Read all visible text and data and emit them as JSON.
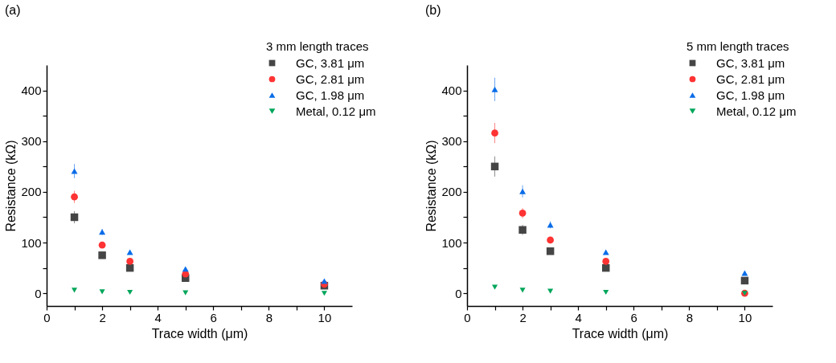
{
  "chart_data": [
    {
      "type": "scatter",
      "title": "(a)",
      "xlabel": "Trace width (μm)",
      "ylabel": "Resistance (kΩ)",
      "legend_title": "3 mm length traces",
      "legend": "top right",
      "grid": false,
      "x": [
        1,
        2,
        3,
        5,
        10
      ],
      "xlim": [
        0,
        11
      ],
      "ylim": [
        -25,
        450
      ],
      "xticks": [
        0,
        {
          "value": 1,
          "label": null
        },
        2,
        {
          "value": 3,
          "label": null
        },
        4,
        {
          "value": 5,
          "label": null
        },
        6,
        {
          "value": 7,
          "label": null
        },
        8,
        {
          "value": 9,
          "label": null
        },
        10
      ],
      "yticks": [
        0,
        {
          "value": 50,
          "label": null
        },
        100,
        {
          "value": 150,
          "label": null
        },
        200,
        {
          "value": 250,
          "label": null
        },
        300,
        {
          "value": 350,
          "label": null
        },
        400
      ],
      "series": [
        {
          "name": "GC, 3.81 μm",
          "color": "#454545",
          "marker": "square",
          "values": [
            150,
            75,
            50,
            30,
            15
          ],
          "errors": [
            12,
            null,
            null,
            null,
            null
          ]
        },
        {
          "name": "GC, 2.81 μm",
          "color": "#ff3333",
          "marker": "circle",
          "values": [
            190,
            95,
            63,
            38,
            18
          ],
          "errors": [
            12,
            null,
            null,
            null,
            null
          ]
        },
        {
          "name": "GC, 1.98 μm",
          "color": "#0a6de8",
          "marker": "triangle",
          "values": [
            241,
            121,
            81,
            48,
            24
          ],
          "errors": [
            14,
            6,
            null,
            null,
            null
          ]
        },
        {
          "name": "Metal, 0.12 μm",
          "color": "#00a65a",
          "marker": "triangle-down",
          "values": [
            6,
            3,
            2,
            1,
            0
          ],
          "errors": [
            null,
            null,
            null,
            null,
            null
          ]
        }
      ]
    },
    {
      "type": "scatter",
      "title": "(b)",
      "xlabel": "Trace width (μm)",
      "ylabel": "Resistance (kΩ)",
      "legend_title": "5 mm length traces",
      "legend": "top right",
      "grid": false,
      "x": [
        1,
        2,
        3,
        5,
        10
      ],
      "xlim": [
        0,
        11
      ],
      "ylim": [
        -25,
        450
      ],
      "xticks": [
        0,
        {
          "value": 1,
          "label": null
        },
        2,
        {
          "value": 3,
          "label": null
        },
        4,
        {
          "value": 5,
          "label": null
        },
        6,
        {
          "value": 7,
          "label": null
        },
        8,
        {
          "value": 9,
          "label": null
        },
        10
      ],
      "yticks": [
        0,
        {
          "value": 50,
          "label": null
        },
        100,
        {
          "value": 150,
          "label": null
        },
        200,
        {
          "value": 250,
          "label": null
        },
        300,
        {
          "value": 350,
          "label": null
        },
        400
      ],
      "series": [
        {
          "name": "GC, 3.81 μm",
          "color": "#454545",
          "marker": "square",
          "values": [
            250,
            125,
            83,
            50,
            25
          ],
          "errors": [
            20,
            10,
            null,
            null,
            null
          ]
        },
        {
          "name": "GC, 2.81 μm",
          "color": "#ff3333",
          "marker": "circle",
          "values": [
            316,
            158,
            105,
            63,
            0
          ],
          "errors": [
            20,
            10,
            null,
            null,
            null
          ]
        },
        {
          "name": "GC, 1.98 μm",
          "color": "#0a6de8",
          "marker": "triangle",
          "values": [
            402,
            201,
            135,
            81,
            40
          ],
          "errors": [
            23,
            12,
            7,
            null,
            null
          ]
        },
        {
          "name": "Metal, 0.12 μm",
          "color": "#00a65a",
          "marker": "triangle-down",
          "values": [
            12,
            6,
            4,
            2,
            0
          ],
          "errors": [
            null,
            null,
            null,
            null,
            null
          ]
        }
      ]
    }
  ]
}
